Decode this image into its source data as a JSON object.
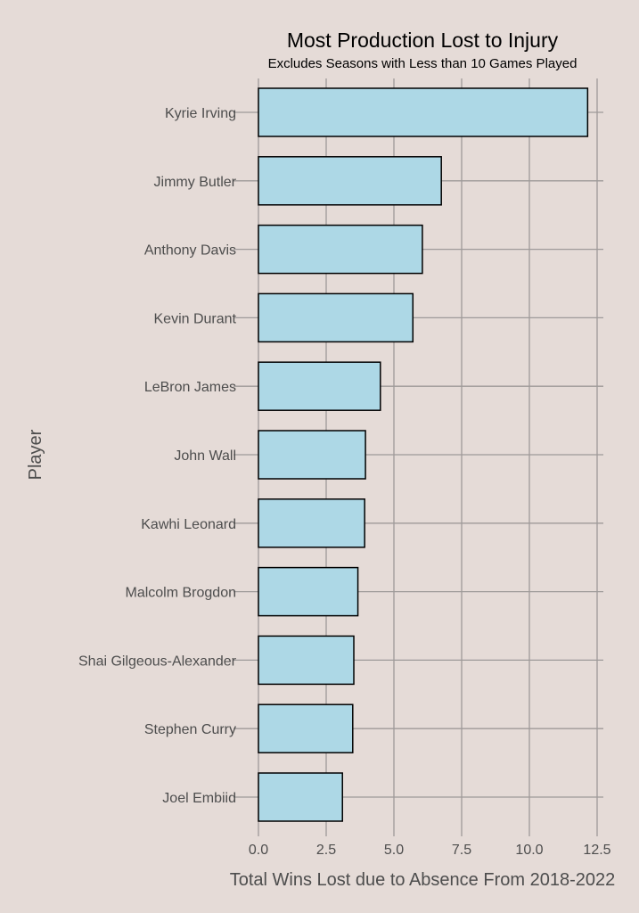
{
  "chart_data": {
    "type": "bar",
    "orientation": "horizontal",
    "title": "Most Production Lost to Injury",
    "subtitle": "Excludes Seasons with Less than 10 Games Played",
    "xlabel": "Total Wins Lost due to Absence From 2018-2022",
    "ylabel": "Player",
    "xlim": [
      0,
      12.5
    ],
    "xticks": [
      "0.0",
      "2.5",
      "5.0",
      "7.5",
      "10.0",
      "12.5"
    ],
    "grid": true,
    "categories": [
      "Kyrie Irving",
      "Jimmy Butler",
      "Anthony Davis",
      "Kevin Durant",
      "LeBron James",
      "John Wall",
      "Kawhi Leonard",
      "Malcolm Brogdon",
      "Shai Gilgeous-Alexander",
      "Stephen Curry",
      "Joel Embiid"
    ],
    "values": [
      12.15,
      6.75,
      6.05,
      5.7,
      4.5,
      3.95,
      3.92,
      3.67,
      3.52,
      3.48,
      3.1
    ],
    "bar_color": "#add8e6",
    "background": "#e5dbd7"
  }
}
